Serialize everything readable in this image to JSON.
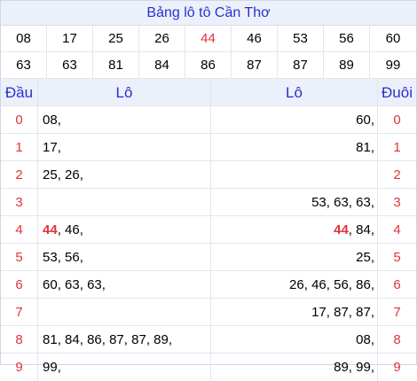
{
  "title": "Bảng lô tô Cần Thơ",
  "numbers": [
    [
      "08",
      "17",
      "25",
      "26",
      "44",
      "46",
      "53",
      "56",
      "60"
    ],
    [
      "63",
      "63",
      "81",
      "84",
      "86",
      "87",
      "87",
      "89",
      "99"
    ]
  ],
  "highlight_number": "44",
  "colors": {
    "accent_blue": "#2a2fd0",
    "highlight_red": "#e0343b",
    "header_bg": "#ecf0fa"
  },
  "table_header": {
    "dau": "Đầu",
    "lo_left": "Lô",
    "lo_right": "Lô",
    "duoi": "Đuôi"
  },
  "rows": [
    {
      "dau": "0",
      "lo_left": "08,",
      "lo_right": "60,",
      "duoi": "0"
    },
    {
      "dau": "1",
      "lo_left": "17,",
      "lo_right": "81,",
      "duoi": "1"
    },
    {
      "dau": "2",
      "lo_left": "25, 26,",
      "lo_right": "",
      "duoi": "2"
    },
    {
      "dau": "3",
      "lo_left": "",
      "lo_right": "53, 63, 63,",
      "duoi": "3"
    },
    {
      "dau": "4",
      "lo_left": "44, 46,",
      "lo_right": "44, 84,",
      "duoi": "4"
    },
    {
      "dau": "5",
      "lo_left": "53, 56,",
      "lo_right": "25,",
      "duoi": "5"
    },
    {
      "dau": "6",
      "lo_left": "60, 63, 63,",
      "lo_right": "26, 46, 56, 86,",
      "duoi": "6"
    },
    {
      "dau": "7",
      "lo_left": "",
      "lo_right": "17, 87, 87,",
      "duoi": "7"
    },
    {
      "dau": "8",
      "lo_left": "81, 84, 86, 87, 87, 89,",
      "lo_right": "08,",
      "duoi": "8"
    },
    {
      "dau": "9",
      "lo_left": "99,",
      "lo_right": "89, 99,",
      "duoi": "9"
    }
  ]
}
